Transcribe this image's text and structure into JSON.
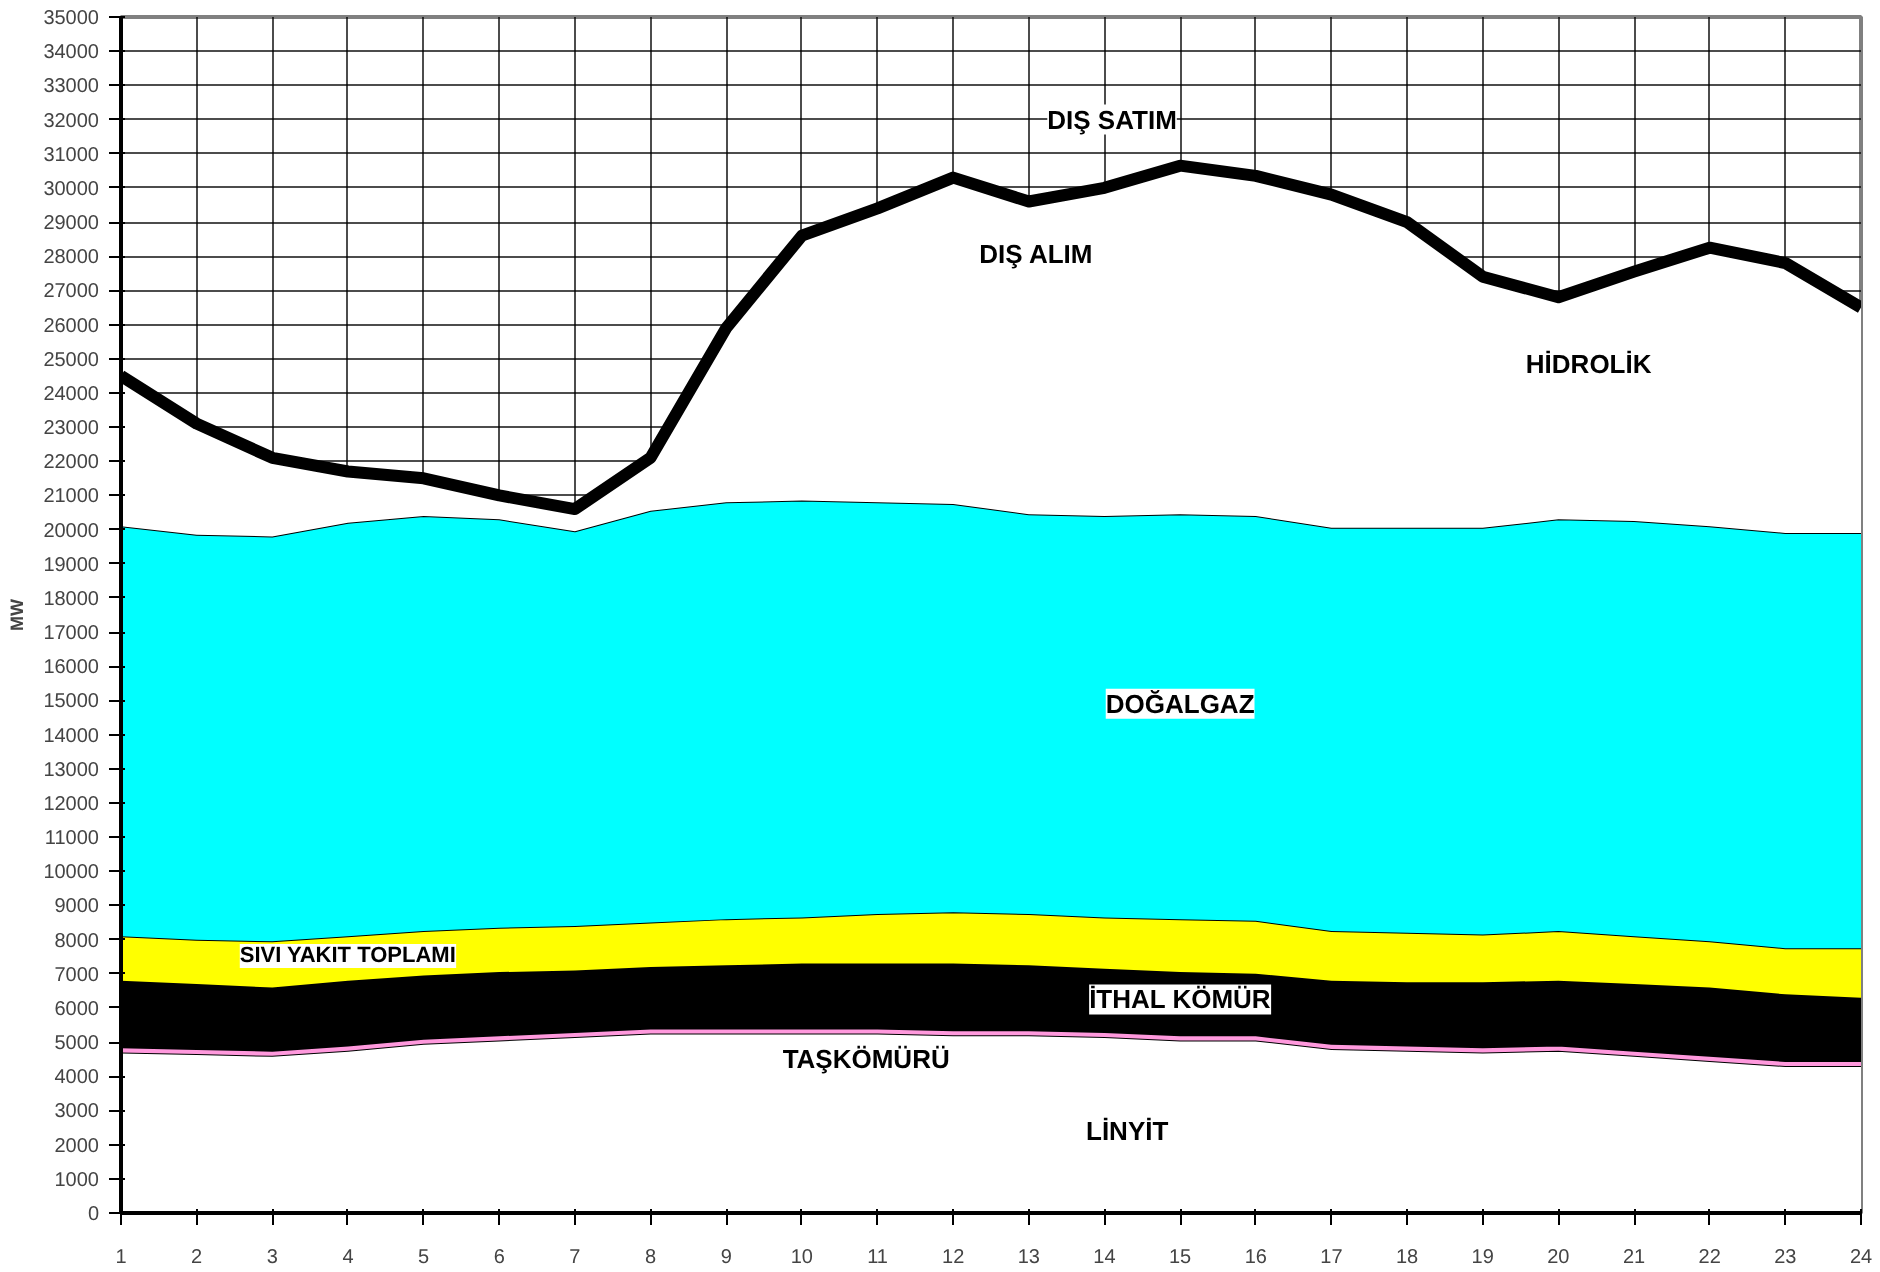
{
  "chart_data": {
    "type": "area",
    "stacked": true,
    "ylabel": "MW",
    "x": [
      1,
      2,
      3,
      4,
      5,
      6,
      7,
      8,
      9,
      10,
      11,
      12,
      13,
      14,
      15,
      16,
      17,
      18,
      19,
      20,
      21,
      22,
      23,
      24
    ],
    "xlim": [
      1,
      24
    ],
    "xticks": [
      1,
      2,
      3,
      4,
      5,
      6,
      7,
      8,
      9,
      10,
      11,
      12,
      13,
      14,
      15,
      16,
      17,
      18,
      19,
      20,
      21,
      22,
      23,
      24
    ],
    "ylim": [
      0,
      35000
    ],
    "yticks": [
      0,
      1000,
      2000,
      3000,
      4000,
      5000,
      6000,
      7000,
      8000,
      9000,
      10000,
      11000,
      12000,
      13000,
      14000,
      15000,
      16000,
      17000,
      18000,
      19000,
      20000,
      21000,
      22000,
      23000,
      24000,
      25000,
      26000,
      27000,
      28000,
      29000,
      30000,
      31000,
      32000,
      33000,
      34000,
      35000
    ],
    "grid": true,
    "series": [
      {
        "color": "#ffffff",
        "values": [
          4700,
          4650,
          4600,
          4750,
          4950,
          5050,
          5150,
          5250,
          5250,
          5250,
          5250,
          5200,
          5200,
          5150,
          5050,
          5050,
          4800,
          4750,
          4700,
          4750,
          4600,
          4450,
          4300,
          4300
        ]
      },
      {
        "color": "#ff99dd",
        "values": [
          150,
          150,
          150,
          150,
          150,
          150,
          150,
          150,
          150,
          150,
          150,
          150,
          150,
          150,
          150,
          150,
          150,
          150,
          150,
          150,
          150,
          150,
          150,
          150
        ]
      },
      {
        "color": "#000000",
        "values": [
          1950,
          1900,
          1850,
          1900,
          1850,
          1850,
          1800,
          1800,
          1850,
          1900,
          1900,
          1950,
          1900,
          1850,
          1850,
          1800,
          1850,
          1850,
          1900,
          1900,
          1950,
          2000,
          1950,
          1850
        ]
      },
      {
        "color": "#ffff00",
        "values": [
          1300,
          1300,
          1350,
          1300,
          1300,
          1300,
          1300,
          1300,
          1350,
          1350,
          1450,
          1500,
          1500,
          1500,
          1550,
          1550,
          1450,
          1450,
          1400,
          1450,
          1400,
          1350,
          1350,
          1450
        ]
      },
      {
        "color": "#00ffff",
        "values": [
          12000,
          11850,
          11850,
          12100,
          12150,
          11950,
          11550,
          12050,
          12200,
          12200,
          12050,
          11950,
          11700,
          11750,
          11850,
          11850,
          11800,
          11850,
          11900,
          12050,
          12150,
          12150,
          12150,
          12150
        ]
      },
      {
        "color": "#ffffff",
        "values": [
          4400,
          3250,
          2300,
          1500,
          1100,
          700,
          650,
          1550,
          5100,
          7750,
          8600,
          9550,
          9150,
          9600,
          10200,
          9950,
          9750,
          8950,
          7350,
          6500,
          7300,
          8150,
          7900,
          6600
        ]
      }
    ],
    "annotations": [
      "DIŞ SATIM",
      "DIŞ ALIM",
      "HİDROLİK",
      "DOĞALGAZ",
      "SIVI YAKIT TOPLAMI",
      "İTHAL KÖMÜR",
      "TAŞKÖMÜRÜ",
      "LİNYİT"
    ]
  }
}
